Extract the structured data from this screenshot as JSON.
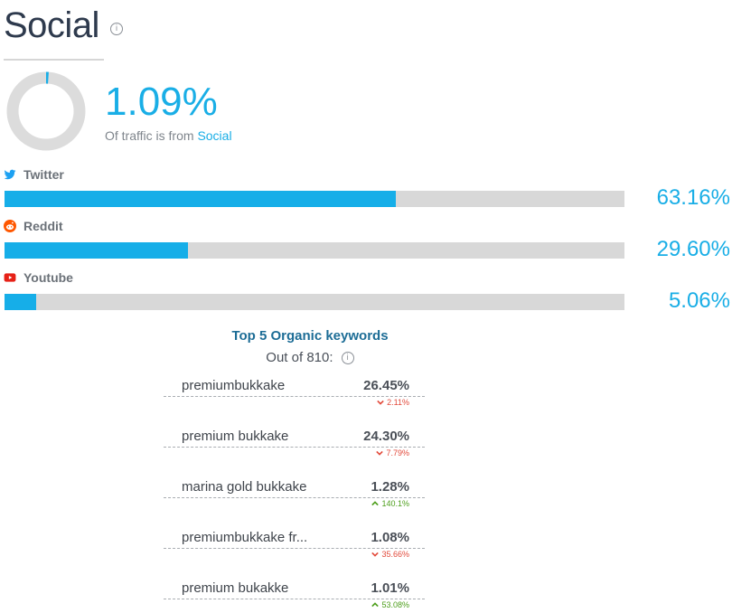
{
  "header": {
    "title": "Social",
    "info_glyph": "i"
  },
  "summary": {
    "percent": "1.09%",
    "note_prefix": "Of traffic is from",
    "note_highlight": "Social",
    "donut_fraction": 0.0109,
    "accent_color": "#19aee6"
  },
  "sources": [
    {
      "name": "Twitter",
      "icon": "twitter-icon",
      "icon_color": "#1da1f2",
      "percent": "63.16%",
      "fraction": 0.6316
    },
    {
      "name": "Reddit",
      "icon": "reddit-icon",
      "icon_color": "#ff5700",
      "percent": "29.60%",
      "fraction": 0.296
    },
    {
      "name": "Youtube",
      "icon": "youtube-icon",
      "icon_color": "#e62117",
      "percent": "5.06%",
      "fraction": 0.0506
    }
  ],
  "keywords": {
    "title": "Top 5 Organic keywords",
    "subtitle": "Out of 810:",
    "items": [
      {
        "name": "premiumbukkake",
        "share": "26.45%",
        "change": "2.11%",
        "direction": "down"
      },
      {
        "name": "premium bukkake",
        "share": "24.30%",
        "change": "7.79%",
        "direction": "down"
      },
      {
        "name": "marina gold bukkake",
        "share": "1.28%",
        "change": "140.1%",
        "direction": "up"
      },
      {
        "name": "premiumbukkake fr...",
        "share": "1.08%",
        "change": "35.66%",
        "direction": "down"
      },
      {
        "name": "premium bukakke",
        "share": "1.01%",
        "change": "53.08%",
        "direction": "up"
      }
    ]
  }
}
